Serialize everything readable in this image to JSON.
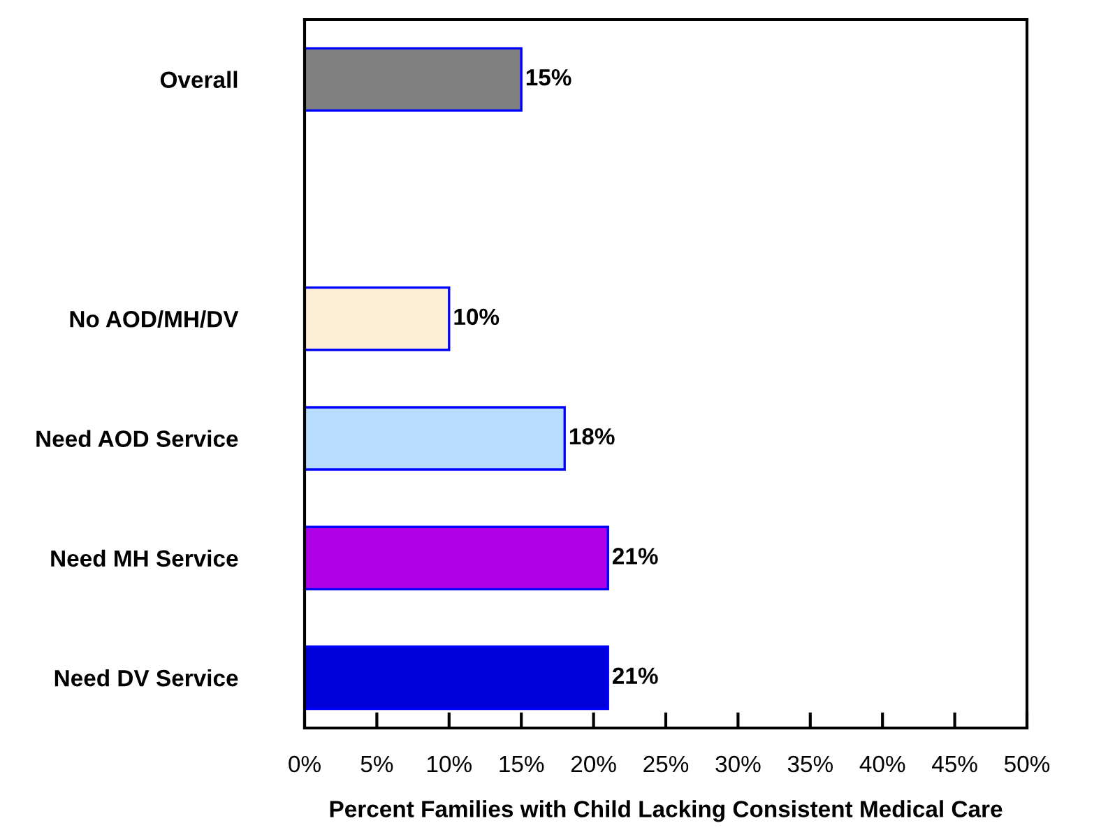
{
  "chart_data": {
    "type": "bar",
    "orientation": "horizontal",
    "xlabel": "Percent Families with Child Lacking Consistent Medical Care",
    "categories": [
      "Overall",
      null,
      "No AOD/MH/DV",
      "Need AOD Service",
      "Need MH Service",
      "Need DV Service"
    ],
    "values": [
      15,
      null,
      10,
      18,
      21,
      21
    ],
    "value_labels": [
      "15%",
      null,
      "10%",
      "18%",
      "21%",
      "21%"
    ],
    "colors": [
      "#808080",
      "#ffffff",
      "#fdeed5",
      "#b8dcff",
      "#b000e8",
      "#0000d8"
    ],
    "xlim": [
      0,
      50
    ],
    "xticks": [
      {
        "value": 0,
        "label": "0%"
      },
      {
        "value": 5,
        "label": "5%"
      },
      {
        "value": 10,
        "label": "10%"
      },
      {
        "value": 15,
        "label": "15%"
      },
      {
        "value": 20,
        "label": "20%"
      },
      {
        "value": 25,
        "label": "25%"
      },
      {
        "value": 30,
        "label": "30%"
      },
      {
        "value": 35,
        "label": "35%"
      },
      {
        "value": 40,
        "label": "40%"
      },
      {
        "value": 45,
        "label": "45%"
      },
      {
        "value": 50,
        "label": "50%"
      }
    ],
    "grid": false,
    "legend": false
  }
}
